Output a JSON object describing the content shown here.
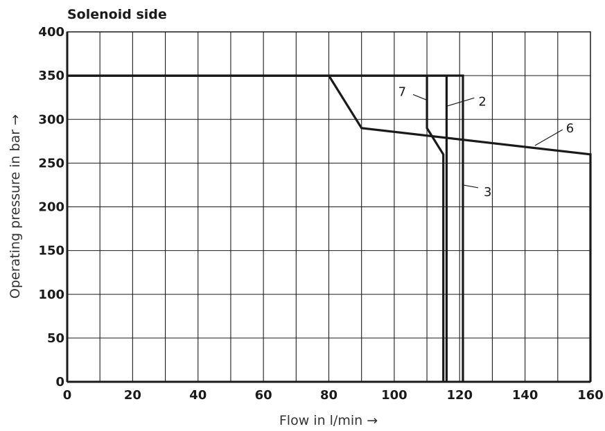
{
  "chart_data": {
    "type": "line",
    "title": "Solenoid side",
    "xlabel": "Flow in l/min →",
    "ylabel": "Operating pressure in bar →",
    "xlim": [
      0,
      160
    ],
    "ylim": [
      0,
      400
    ],
    "x_ticks": [
      0,
      20,
      40,
      60,
      80,
      100,
      120,
      140,
      160
    ],
    "y_ticks": [
      0,
      50,
      100,
      150,
      200,
      250,
      300,
      350,
      400
    ],
    "grid": true,
    "x_grid_step": 10,
    "y_grid_step": 50,
    "series": [
      {
        "name": "2",
        "points": [
          [
            0,
            350
          ],
          [
            116,
            350
          ],
          [
            116,
            0
          ]
        ]
      },
      {
        "name": "3",
        "points": [
          [
            0,
            350
          ],
          [
            121,
            350
          ],
          [
            121,
            0
          ]
        ]
      },
      {
        "name": "7",
        "points": [
          [
            0,
            350
          ],
          [
            110,
            350
          ],
          [
            110,
            290
          ],
          [
            115,
            260
          ],
          [
            115,
            0
          ]
        ]
      },
      {
        "name": "6",
        "points": [
          [
            0,
            350
          ],
          [
            80,
            350
          ],
          [
            90,
            290
          ],
          [
            160,
            260
          ],
          [
            160,
            0
          ]
        ]
      }
    ],
    "annotations": [
      {
        "text": "7",
        "target": [
          110,
          322
        ]
      },
      {
        "text": "2",
        "target": [
          116,
          315
        ]
      },
      {
        "text": "6",
        "target": [
          143,
          270
        ]
      },
      {
        "text": "3",
        "target": [
          121,
          225
        ]
      }
    ]
  }
}
